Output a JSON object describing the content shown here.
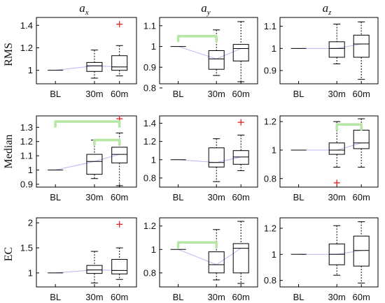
{
  "column_titles": [
    {
      "base": "a",
      "sub": "x"
    },
    {
      "base": "a",
      "sub": "y"
    },
    {
      "base": "a",
      "sub": "z"
    }
  ],
  "row_labels": [
    "RMS",
    "Median",
    "EC"
  ],
  "colors": {
    "box": "#000000",
    "mean_line": "#b8b8f0",
    "outlier": "#e32222",
    "significance": "#b6e6a3"
  },
  "chart_data": [
    {
      "type": "box",
      "row": "RMS",
      "col": "a_x",
      "categories": [
        "BL",
        "30m",
        "60m"
      ],
      "yticks": [
        1,
        1.2,
        1.4
      ],
      "ytick_labels": [
        "1",
        "1.2",
        "1.4"
      ],
      "ylim": [
        0.88,
        1.47
      ],
      "boxes": [
        {
          "min": 1,
          "q1": 1,
          "median": 1,
          "q3": 1,
          "max": 1
        },
        {
          "min": 0.93,
          "q1": 0.99,
          "median": 1.04,
          "q3": 1.07,
          "max": 1.18
        },
        {
          "min": 0.95,
          "q1": 1.0,
          "median": 1.03,
          "q3": 1.13,
          "max": 1.22
        }
      ],
      "outliers": [
        {
          "category": "60m",
          "value": 1.41
        }
      ],
      "significance": [],
      "grid": false
    },
    {
      "type": "box",
      "row": "RMS",
      "col": "a_y",
      "categories": [
        "BL",
        "30m",
        "60m"
      ],
      "yticks": [
        0.8,
        0.9,
        1,
        1.1
      ],
      "ytick_labels": [
        "0.8",
        "0.9",
        "1",
        "1.1"
      ],
      "ylim": [
        0.82,
        1.14
      ],
      "boxes": [
        {
          "min": 1,
          "q1": 1,
          "median": 1,
          "q3": 1,
          "max": 1
        },
        {
          "min": 0.86,
          "q1": 0.89,
          "median": 0.94,
          "q3": 0.98,
          "max": 1.08
        },
        {
          "min": 0.83,
          "q1": 0.93,
          "median": 0.99,
          "q3": 1.01,
          "max": 1.12
        }
      ],
      "outliers": [],
      "significance": [
        {
          "from": "BL",
          "to": "30m",
          "value": 1.05
        }
      ],
      "grid": false
    },
    {
      "type": "box",
      "row": "RMS",
      "col": "a_z",
      "categories": [
        "BL",
        "30m",
        "60m"
      ],
      "yticks": [
        0.9,
        1,
        1.1
      ],
      "ytick_labels": [
        "0.9",
        "1",
        "1.1"
      ],
      "ylim": [
        0.84,
        1.14
      ],
      "boxes": [
        {
          "min": 1,
          "q1": 1,
          "median": 1,
          "q3": 1,
          "max": 1
        },
        {
          "min": 0.93,
          "q1": 0.96,
          "median": 1.0,
          "q3": 1.03,
          "max": 1.11
        },
        {
          "min": 0.86,
          "q1": 0.96,
          "median": 1.02,
          "q3": 1.06,
          "max": 1.12
        }
      ],
      "outliers": [],
      "significance": [],
      "grid": false
    },
    {
      "type": "box",
      "row": "Median",
      "col": "a_x",
      "categories": [
        "BL",
        "30m",
        "60m"
      ],
      "yticks": [
        0.9,
        1,
        1.1,
        1.2,
        1.3
      ],
      "ytick_labels": [
        "0.9",
        "1",
        "1.1",
        "1.2",
        "1.3"
      ],
      "ylim": [
        0.88,
        1.38
      ],
      "boxes": [
        {
          "min": 1,
          "q1": 1,
          "median": 1,
          "q3": 1,
          "max": 1
        },
        {
          "min": 0.94,
          "q1": 0.97,
          "median": 1.06,
          "q3": 1.11,
          "max": 1.21
        },
        {
          "min": 0.89,
          "q1": 1.05,
          "median": 1.11,
          "q3": 1.16,
          "max": 1.26
        }
      ],
      "outliers": [
        {
          "category": "60m",
          "value": 1.36
        }
      ],
      "significance": [
        {
          "from": "BL",
          "to": "60m",
          "value": 1.34
        },
        {
          "from": "30m",
          "to": "60m",
          "value": 1.21
        }
      ],
      "grid": false
    },
    {
      "type": "box",
      "row": "Median",
      "col": "a_y",
      "categories": [
        "BL",
        "30m",
        "60m"
      ],
      "yticks": [
        0.8,
        1,
        1.2,
        1.4
      ],
      "ytick_labels": [
        "0.8",
        "1",
        "1.2",
        "1.4"
      ],
      "ylim": [
        0.7,
        1.48
      ],
      "boxes": [
        {
          "min": 1,
          "q1": 1,
          "median": 1,
          "q3": 1,
          "max": 1
        },
        {
          "min": 0.76,
          "q1": 0.92,
          "median": 0.97,
          "q3": 1.13,
          "max": 1.23
        },
        {
          "min": 0.88,
          "q1": 0.95,
          "median": 1.03,
          "q3": 1.1,
          "max": 1.27
        }
      ],
      "outliers": [
        {
          "category": "60m",
          "value": 1.41
        }
      ],
      "significance": [],
      "grid": false
    },
    {
      "type": "box",
      "row": "Median",
      "col": "a_z",
      "categories": [
        "BL",
        "30m",
        "60m"
      ],
      "yticks": [
        0.8,
        1,
        1.2
      ],
      "ytick_labels": [
        "0.8",
        "1",
        "1.2"
      ],
      "ylim": [
        0.74,
        1.24
      ],
      "boxes": [
        {
          "min": 1,
          "q1": 1,
          "median": 1,
          "q3": 1,
          "max": 1
        },
        {
          "min": 0.88,
          "q1": 0.97,
          "median": 1.0,
          "q3": 1.05,
          "max": 1.2
        },
        {
          "min": 0.88,
          "q1": 1.01,
          "median": 1.05,
          "q3": 1.14,
          "max": 1.22
        }
      ],
      "outliers": [
        {
          "category": "30m",
          "value": 0.77
        }
      ],
      "significance": [
        {
          "from": "30m",
          "to": "60m",
          "value": 1.18
        }
      ],
      "grid": false
    },
    {
      "type": "box",
      "row": "EC",
      "col": "a_x",
      "categories": [
        "BL",
        "30m",
        "60m"
      ],
      "yticks": [
        1,
        1.5,
        2
      ],
      "ytick_labels": [
        "1",
        "1.5",
        "2"
      ],
      "ylim": [
        0.72,
        2.1
      ],
      "boxes": [
        {
          "min": 1,
          "q1": 1,
          "median": 1,
          "q3": 1,
          "max": 1
        },
        {
          "min": 0.8,
          "q1": 0.99,
          "median": 1.06,
          "q3": 1.15,
          "max": 1.43
        },
        {
          "min": 0.87,
          "q1": 0.98,
          "median": 1.05,
          "q3": 1.27,
          "max": 1.5
        }
      ],
      "outliers": [
        {
          "category": "60m",
          "value": 1.97
        }
      ],
      "significance": [],
      "grid": false
    },
    {
      "type": "box",
      "row": "EC",
      "col": "a_y",
      "categories": [
        "BL",
        "30m",
        "60m"
      ],
      "yticks": [
        0.8,
        1,
        1.2
      ],
      "ytick_labels": [
        "0.8",
        "1",
        "1.2"
      ],
      "ylim": [
        0.68,
        1.27
      ],
      "boxes": [
        {
          "min": 1,
          "q1": 1,
          "median": 1,
          "q3": 1,
          "max": 1
        },
        {
          "min": 0.74,
          "q1": 0.8,
          "median": 0.87,
          "q3": 0.98,
          "max": 1.17
        },
        {
          "min": 0.71,
          "q1": 0.8,
          "median": 1.01,
          "q3": 1.05,
          "max": 1.24
        }
      ],
      "outliers": [],
      "significance": [
        {
          "from": "BL",
          "to": "30m",
          "value": 1.06
        }
      ],
      "grid": false
    },
    {
      "type": "box",
      "row": "EC",
      "col": "a_z",
      "categories": [
        "BL",
        "30m",
        "60m"
      ],
      "yticks": [
        0.8,
        1,
        1.2
      ],
      "ytick_labels": [
        "0.8",
        "1",
        "1.2"
      ],
      "ylim": [
        0.75,
        1.28
      ],
      "boxes": [
        {
          "min": 1,
          "q1": 1,
          "median": 1,
          "q3": 1,
          "max": 1
        },
        {
          "min": 0.84,
          "q1": 0.92,
          "median": 1.0,
          "q3": 1.08,
          "max": 1.22
        },
        {
          "min": 0.78,
          "q1": 0.91,
          "median": 1.03,
          "q3": 1.14,
          "max": 1.25
        }
      ],
      "outliers": [],
      "significance": [],
      "grid": false
    }
  ]
}
